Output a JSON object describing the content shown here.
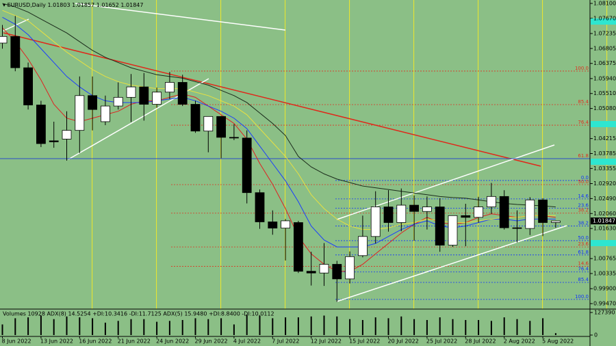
{
  "chart_data": {
    "type": "candlestick",
    "symbol": "EURUSD,Daily",
    "x": [
      "8 Jun 2022",
      null,
      null,
      "13 Jun 2022",
      null,
      null,
      "16 Jun 2022",
      null,
      null,
      "21 Jun 2022",
      null,
      null,
      "24 Jun 2022",
      null,
      null,
      "29 Jun 2022",
      null,
      null,
      "4 Jul 2022",
      null,
      null,
      "7 Jul 2022",
      null,
      null,
      "12 Jul 2022",
      null,
      null,
      "15 Jul 2022",
      null,
      null,
      "20 Jul 2022",
      null,
      null,
      "25 Jul 2022",
      null,
      null,
      "28 Jul 2022",
      null,
      null,
      "2 Aug 2022",
      null,
      null,
      "5 Aug 2022",
      null
    ],
    "open": [
      1.0696,
      1.0715,
      1.0625,
      1.0518,
      1.0415,
      1.042,
      1.0445,
      1.0545,
      1.047,
      1.0515,
      1.054,
      1.057,
      1.052,
      1.0555,
      1.0583,
      1.052,
      1.0443,
      1.0485,
      1.0425,
      1.0423,
      1.0266,
      1.0182,
      1.0164,
      1.018,
      1.004,
      1.0035,
      1.006,
      1.0018,
      1.0085,
      1.014,
      1.0225,
      1.018,
      1.023,
      1.0212,
      1.0225,
      1.0115,
      1.02,
      1.0195,
      1.0225,
      1.0255,
      1.0165,
      1.0163,
      1.0245,
      1.01803
    ],
    "high": [
      1.0748,
      1.0774,
      1.064,
      1.053,
      1.047,
      1.05,
      1.06,
      1.06,
      1.0545,
      1.0583,
      1.0607,
      1.061,
      1.0568,
      1.0613,
      1.0605,
      1.053,
      1.0485,
      1.0487,
      1.0463,
      1.0445,
      1.0275,
      1.0215,
      1.019,
      1.0185,
      1.0096,
      1.0121,
      1.007,
      1.0097,
      1.02,
      1.027,
      1.0273,
      1.0278,
      1.0258,
      1.0255,
      1.025,
      1.02,
      1.0234,
      1.0254,
      1.0294,
      1.0273,
      1.0215,
      1.0253,
      1.025,
      1.01857
    ],
    "low": [
      1.068,
      1.0615,
      1.0505,
      1.0397,
      1.0395,
      1.0358,
      1.038,
      1.0445,
      1.046,
      1.0505,
      1.0469,
      1.0473,
      1.051,
      1.0535,
      1.0515,
      1.0438,
      1.0382,
      1.0365,
      1.0417,
      1.0235,
      1.0162,
      1.0145,
      1.0071,
      1.0035,
      0.9999,
      0.9998,
      0.9952,
      1.0005,
      1.008,
      1.012,
      1.0154,
      1.0155,
      1.0128,
      1.016,
      1.0096,
      1.011,
      1.0112,
      1.018,
      1.0205,
      1.016,
      1.0123,
      1.0144,
      1.0141,
      1.01652
    ],
    "close": [
      1.0715,
      1.0625,
      1.0518,
      1.0407,
      1.0412,
      1.0445,
      1.0545,
      1.0505,
      1.0515,
      1.054,
      1.057,
      1.052,
      1.0555,
      1.0583,
      1.052,
      1.0443,
      1.0485,
      1.0425,
      1.0423,
      1.0266,
      1.0182,
      1.0164,
      1.0185,
      1.004,
      1.0035,
      1.006,
      1.0018,
      1.0082,
      1.014,
      1.0225,
      1.018,
      1.023,
      1.0212,
      1.0225,
      1.0115,
      1.02,
      1.0195,
      1.0225,
      1.0255,
      1.0165,
      1.0163,
      1.0245,
      1.018,
      1.01847
    ],
    "bull_color": "#ffffff",
    "bear_color": "#000000",
    "background": "#8bbf86",
    "ylim": [
      0.99313,
      1.08198
    ],
    "yticks": [
      {
        "value": 1.081,
        "label": "1.08100"
      },
      {
        "value": 1.0767,
        "label": "1.07670"
      },
      {
        "value": 1.07235,
        "label": "1.07235"
      },
      {
        "value": 1.06805,
        "label": "1.06805"
      },
      {
        "value": 1.06375,
        "label": "1.06375"
      },
      {
        "value": 1.0594,
        "label": "1.05940"
      },
      {
        "value": 1.0551,
        "label": "1.05510"
      },
      {
        "value": 1.0508,
        "label": "1.05080"
      },
      {
        "value": 1.04215,
        "label": "1.04215"
      },
      {
        "value": 1.03785,
        "label": "1.03785"
      },
      {
        "value": 1.03355,
        "label": "1.03355"
      },
      {
        "value": 1.0292,
        "label": "1.02920"
      },
      {
        "value": 1.0249,
        "label": "1.02490"
      },
      {
        "value": 1.0206,
        "label": "1.02060"
      },
      {
        "value": 1.0163,
        "label": "1.01630"
      },
      {
        "value": 1.00765,
        "label": "1.00765"
      },
      {
        "value": 1.00335,
        "label": "1.00335"
      },
      {
        "value": 0.999,
        "label": "0.99900"
      },
      {
        "value": 0.9947,
        "label": "0.99470"
      }
    ],
    "moving_averages": [
      {
        "color": "#e02020",
        "values": [
          1.074,
          1.07,
          1.065,
          1.059,
          1.052,
          1.048,
          1.047,
          1.048,
          1.049,
          1.05,
          1.052,
          1.053,
          1.053,
          1.054,
          1.055,
          1.054,
          1.0515,
          1.049,
          1.0465,
          1.042,
          1.035,
          1.029,
          1.022,
          1.014,
          1.009,
          1.006,
          1.004,
          1.004,
          1.006,
          1.009,
          1.012,
          1.015,
          1.0175,
          1.0195,
          1.018,
          1.0175,
          1.018,
          1.0195,
          1.0205,
          1.02,
          1.0195,
          1.02,
          1.02,
          1.0195
        ]
      },
      {
        "color": "#1a3cff",
        "values": [
          1.077,
          1.075,
          1.072,
          1.068,
          1.064,
          1.06,
          1.057,
          1.0545,
          1.053,
          1.0525,
          1.0525,
          1.0525,
          1.053,
          1.0535,
          1.054,
          1.053,
          1.0515,
          1.05,
          1.048,
          1.045,
          1.04,
          1.035,
          1.03,
          1.024,
          1.017,
          1.013,
          1.011,
          1.011,
          1.011,
          1.012,
          1.014,
          1.016,
          1.0175,
          1.0185,
          1.017,
          1.0165,
          1.017,
          1.018,
          1.019,
          1.019,
          1.0185,
          1.019,
          1.019,
          1.019
        ]
      },
      {
        "color": "#e8e040",
        "values": [
          1.079,
          1.0775,
          1.076,
          1.073,
          1.07,
          1.067,
          1.0645,
          1.062,
          1.06,
          1.0585,
          1.0575,
          1.057,
          1.0565,
          1.0565,
          1.0565,
          1.0555,
          1.0545,
          1.053,
          1.0515,
          1.049,
          1.045,
          1.041,
          1.037,
          1.032,
          1.026,
          1.022,
          1.019,
          1.017,
          1.016,
          1.016,
          1.0165,
          1.0175,
          1.018,
          1.019,
          1.0185,
          1.018,
          1.018,
          1.0185,
          1.019,
          1.0195,
          1.0195,
          1.02,
          1.02,
          1.02
        ]
      },
      {
        "color": "#1a2a1a",
        "values": [
          1.081,
          1.08,
          1.0785,
          1.0765,
          1.0745,
          1.0725,
          1.07,
          1.0675,
          1.0655,
          1.064,
          1.0625,
          1.0615,
          1.0605,
          1.06,
          1.0595,
          1.0585,
          1.0575,
          1.056,
          1.0545,
          1.0525,
          1.0495,
          1.0465,
          1.043,
          1.037,
          1.034,
          1.032,
          1.0305,
          1.0295,
          1.0285,
          1.028,
          1.0275,
          1.027,
          1.0265,
          1.026,
          1.0255,
          1.0252,
          1.025,
          1.0245,
          1.024,
          1.0235,
          1.0232,
          1.023,
          1.0228,
          1.0225
        ]
      }
    ],
    "fib_red": {
      "color": "#e03020",
      "levels": [
        {
          "label": "100.0",
          "value": 1.06155
        },
        {
          "label": "85.4",
          "value": 1.0519
        },
        {
          "label": "76.4",
          "value": 1.046
        },
        {
          "label": "61.8",
          "value": 1.0364
        },
        {
          "label": "50.0",
          "value": 1.0289
        },
        {
          "label": "38.2",
          "value": 1.0207
        },
        {
          "label": "23.6",
          "value": 1.011
        },
        {
          "label": "14.6",
          "value": 1.0054
        }
      ]
    },
    "fib_blue": {
      "color": "#1030ff",
      "levels": [
        {
          "label": "0.0",
          "value": 1.0301
        },
        {
          "label": "14.6",
          "value": 1.0248
        },
        {
          "label": "23.6",
          "value": 1.0221
        },
        {
          "label": "38.2",
          "value": 1.017
        },
        {
          "label": "50.0",
          "value": 1.0128
        },
        {
          "label": "61.8",
          "value": 1.0087
        },
        {
          "label": "76.4",
          "value": 1.0038
        },
        {
          "label": "85.4",
          "value": 1.0008
        },
        {
          "label": "100.0",
          "value": 0.9959
        }
      ]
    },
    "volume": {
      "label": "Volumes 10928  ADX(8) 14.5254 +DI:10.3416 -DI:11.7125  ADX(5) 15.9480 +DI:8.8400 -DI:10.0112",
      "ylim": [
        0,
        127390
      ],
      "yticks": [
        127390,
        0
      ],
      "values": [
        60000,
        95000,
        100000,
        110000,
        90000,
        105000,
        100000,
        95000,
        70000,
        80000,
        90000,
        90000,
        75000,
        80000,
        85000,
        95000,
        90000,
        95000,
        60000,
        115000,
        110000,
        95000,
        100000,
        100000,
        105000,
        110000,
        105000,
        90000,
        85000,
        100000,
        95000,
        105000,
        90000,
        85000,
        100000,
        90000,
        85000,
        85000,
        80000,
        100000,
        90000,
        80000,
        95000,
        10928
      ]
    }
  }
}
